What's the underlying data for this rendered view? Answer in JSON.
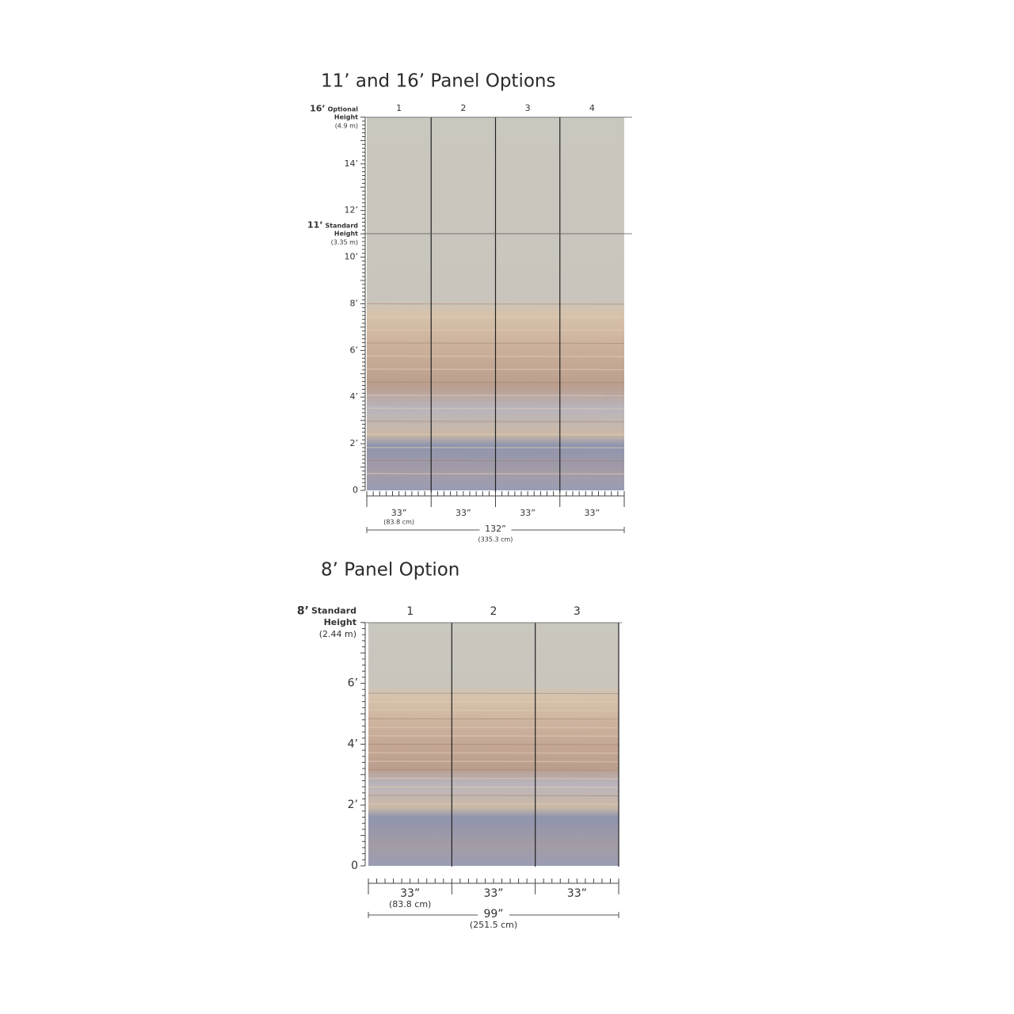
{
  "sections": [
    {
      "title": "11’ and 16’ Panel Options",
      "panel_numbers": [
        "1",
        "2",
        "3",
        "4"
      ],
      "height_markers": [
        {
          "size": "16’",
          "label": "Optional",
          "label2": "Height",
          "metric": "(4.9 m)"
        },
        {
          "size": "11’",
          "label": "Standard",
          "label2": "Height",
          "metric": "(3.35 m)"
        }
      ],
      "ruler_labels": [
        "14’",
        "12’",
        "10’",
        "8’",
        "6’",
        "4’",
        "2’",
        "0"
      ],
      "panel_widths": [
        "33”",
        "33”",
        "33”",
        "33”"
      ],
      "panel_width_metric": "(83.8 cm)",
      "total_width": "132”",
      "total_width_metric": "(335.3 cm)"
    },
    {
      "title": "8’ Panel Option",
      "panel_numbers": [
        "1",
        "2",
        "3"
      ],
      "height_markers": [
        {
          "size": "8’",
          "label": "Standard",
          "label2": "Height",
          "metric": "(2.44 m)"
        }
      ],
      "ruler_labels": [
        "6’",
        "4’",
        "2’",
        "0"
      ],
      "panel_widths": [
        "33”",
        "33”",
        "33”"
      ],
      "panel_width_metric": "(83.8 cm)",
      "total_width": "99”",
      "total_width_metric": "(251.5 cm)"
    }
  ]
}
